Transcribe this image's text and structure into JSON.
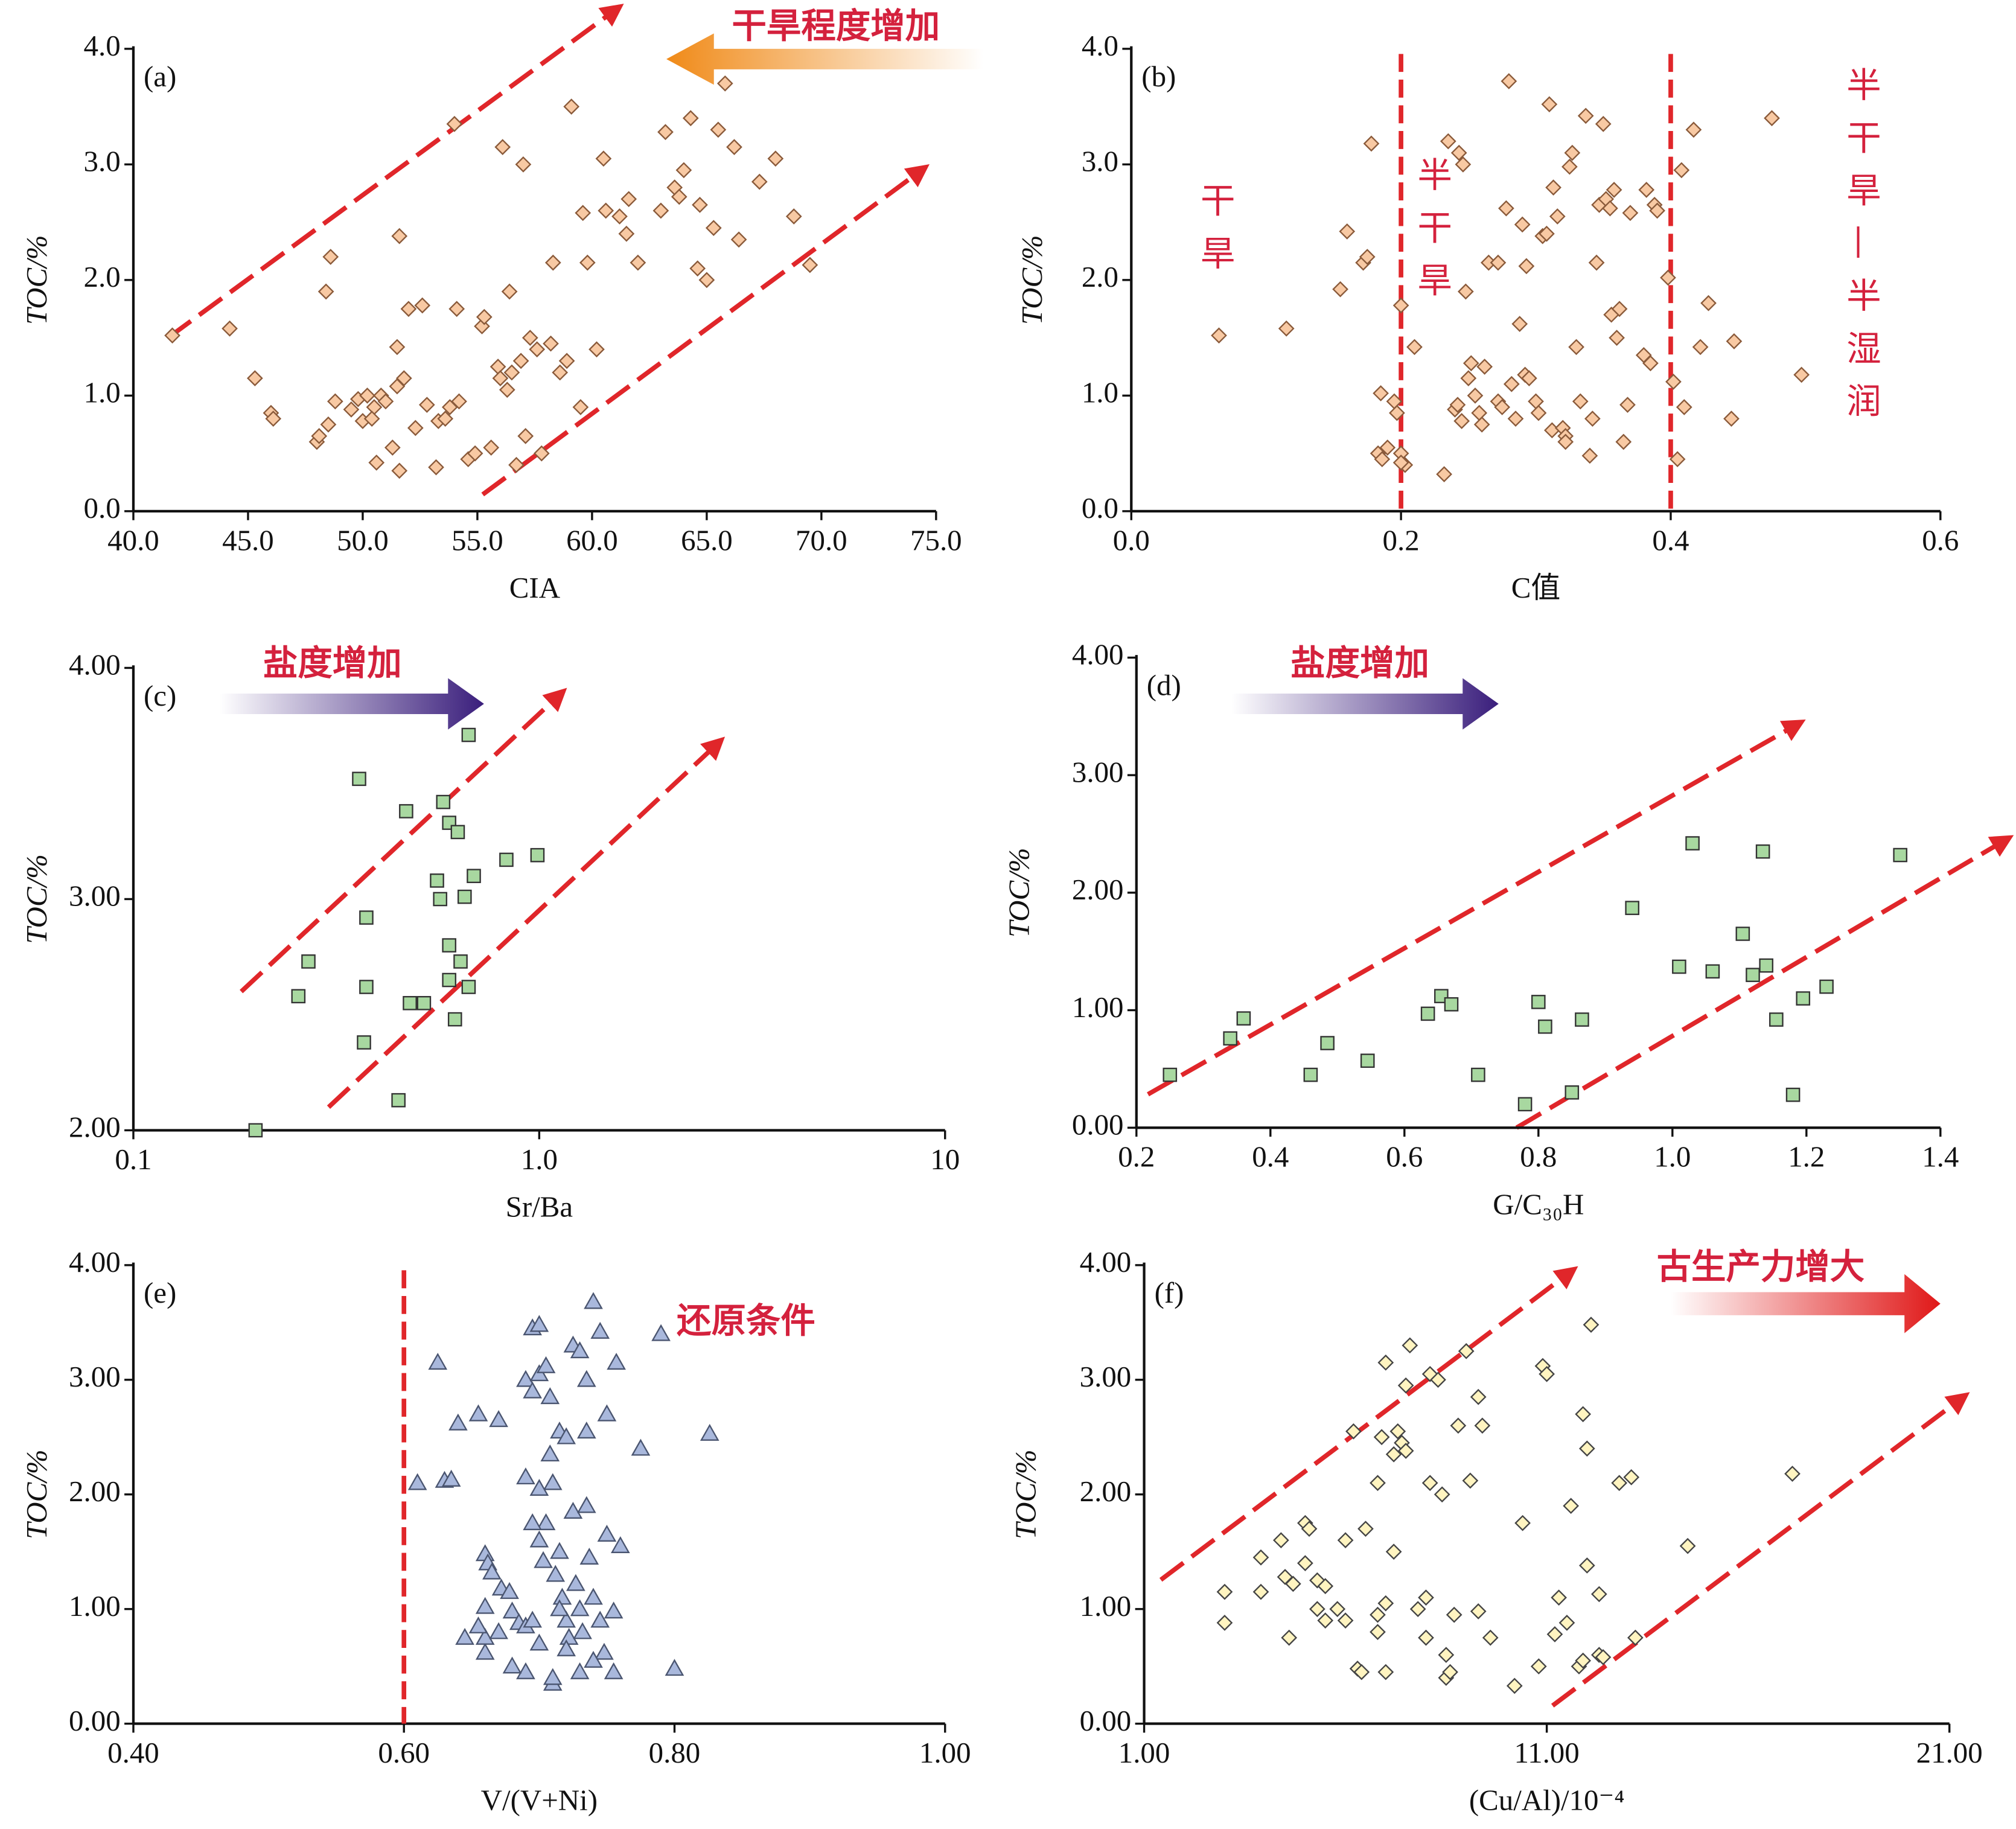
{
  "chart_data": [
    {
      "type": "scatter",
      "label": "(a)",
      "xlabel": "CIA",
      "ylabel": "TOC/%",
      "marker": "diamond",
      "color": "#f8c9a3",
      "edge": "#8a5a3a",
      "xlim": [
        40,
        75
      ],
      "ylim": [
        0,
        4
      ],
      "xticks": [
        {
          "value": 40,
          "label": "40.0"
        },
        {
          "value": 45,
          "label": "45.0"
        },
        {
          "value": 50,
          "label": "50.0"
        },
        {
          "value": 55,
          "label": "55.0"
        },
        {
          "value": 60,
          "label": "60.0"
        },
        {
          "value": 65,
          "label": "65.0"
        },
        {
          "value": 70,
          "label": "70.0"
        },
        {
          "value": 75,
          "label": "75.0"
        }
      ],
      "yticks": [
        {
          "value": 0,
          "label": "0.0"
        },
        {
          "value": 1,
          "label": "1.0"
        },
        {
          "value": 2,
          "label": "2.0"
        },
        {
          "value": 3,
          "label": "3.0"
        },
        {
          "value": 4,
          "label": "4.0"
        }
      ],
      "annotations": [
        "干旱程度增加"
      ],
      "x": [
        41.7,
        44.2,
        45.3,
        46.0,
        46.1,
        48.0,
        48.1,
        48.5,
        48.4,
        48.6,
        48.8,
        49.5,
        49.8,
        50.0,
        50.2,
        50.5,
        50.4,
        50.6,
        50.8,
        51.0,
        51.3,
        51.5,
        51.6,
        51.6,
        51.8,
        51.5,
        52.0,
        52.3,
        52.6,
        52.8,
        53.2,
        53.3,
        53.6,
        53.8,
        54.0,
        54.1,
        54.2,
        54.6,
        54.9,
        55.2,
        55.3,
        55.6,
        55.9,
        56.0,
        56.1,
        56.3,
        56.4,
        56.5,
        56.7,
        56.9,
        57.0,
        57.1,
        57.3,
        57.6,
        57.8,
        58.2,
        58.3,
        58.6,
        58.9,
        59.1,
        59.5,
        59.6,
        59.8,
        60.2,
        60.5,
        60.6,
        61.2,
        61.5,
        61.6,
        62.0,
        63.0,
        63.2,
        63.6,
        63.8,
        64.0,
        64.3,
        64.7,
        64.6,
        65.0,
        65.3,
        65.5,
        65.8,
        66.2,
        66.4,
        67.3,
        68.0,
        68.8,
        69.5
      ],
      "values": [
        1.52,
        1.58,
        1.15,
        0.85,
        0.8,
        0.6,
        0.65,
        0.75,
        1.9,
        2.2,
        0.95,
        0.88,
        0.97,
        0.78,
        1.0,
        0.9,
        0.8,
        0.42,
        1.0,
        0.95,
        0.55,
        1.08,
        0.35,
        2.38,
        1.15,
        1.42,
        1.75,
        0.72,
        1.78,
        0.92,
        0.38,
        0.78,
        0.8,
        0.9,
        3.35,
        1.75,
        0.95,
        0.45,
        0.5,
        1.6,
        1.68,
        0.55,
        1.25,
        1.15,
        3.15,
        1.05,
        1.9,
        1.2,
        0.4,
        1.3,
        3.0,
        0.65,
        1.5,
        1.4,
        0.5,
        1.45,
        2.15,
        1.2,
        1.3,
        3.5,
        0.9,
        2.58,
        2.15,
        1.4,
        3.05,
        2.6,
        2.55,
        2.4,
        2.7,
        2.15,
        2.6,
        3.28,
        2.8,
        2.72,
        2.95,
        3.4,
        2.65,
        2.1,
        2.0,
        2.45,
        3.3,
        3.7,
        3.15,
        2.35,
        2.85,
        3.05,
        2.55,
        2.13
      ]
    },
    {
      "type": "scatter",
      "label": "(b)",
      "xlabel": "C值",
      "ylabel": "TOC/%",
      "marker": "diamond",
      "color": "#f8c9a3",
      "edge": "#8a5a3a",
      "xlim": [
        0,
        0.6
      ],
      "ylim": [
        0,
        4
      ],
      "xticks": [
        {
          "value": 0,
          "label": "0.0"
        },
        0.2,
        0.4,
        0.6
      ],
      "yticks": [
        {
          "value": 0,
          "label": "0.0"
        },
        {
          "value": 1,
          "label": "1.0"
        },
        {
          "value": 2,
          "label": "2.0"
        },
        {
          "value": 3,
          "label": "3.0"
        },
        {
          "value": 4,
          "label": "4.0"
        }
      ],
      "vlines": [
        0.2,
        0.4
      ],
      "annotations": [
        "干旱",
        "半干旱",
        "半干旱—半湿润"
      ],
      "x": [
        0.065,
        0.115,
        0.155,
        0.16,
        0.172,
        0.175,
        0.178,
        0.185,
        0.183,
        0.186,
        0.19,
        0.195,
        0.197,
        0.2,
        0.2,
        0.203,
        0.2,
        0.21,
        0.232,
        0.235,
        0.24,
        0.242,
        0.245,
        0.243,
        0.246,
        0.248,
        0.25,
        0.252,
        0.255,
        0.258,
        0.26,
        0.262,
        0.265,
        0.272,
        0.272,
        0.275,
        0.278,
        0.28,
        0.282,
        0.285,
        0.288,
        0.29,
        0.292,
        0.293,
        0.295,
        0.3,
        0.302,
        0.305,
        0.308,
        0.31,
        0.312,
        0.313,
        0.316,
        0.32,
        0.322,
        0.322,
        0.325,
        0.327,
        0.33,
        0.333,
        0.337,
        0.34,
        0.342,
        0.345,
        0.347,
        0.35,
        0.352,
        0.355,
        0.356,
        0.358,
        0.36,
        0.362,
        0.365,
        0.368,
        0.37,
        0.38,
        0.382,
        0.385,
        0.388,
        0.39,
        0.398,
        0.402,
        0.405,
        0.408,
        0.41,
        0.417,
        0.422,
        0.428,
        0.445,
        0.447,
        0.475,
        0.497
      ],
      "values": [
        1.52,
        1.58,
        1.92,
        2.42,
        2.15,
        2.2,
        3.18,
        1.02,
        0.5,
        0.45,
        0.55,
        0.95,
        0.85,
        1.78,
        0.5,
        0.4,
        0.42,
        1.42,
        0.32,
        3.2,
        0.88,
        0.92,
        0.78,
        3.1,
        3.0,
        1.9,
        1.15,
        1.28,
        1.0,
        0.85,
        0.75,
        1.25,
        2.15,
        2.15,
        0.95,
        0.9,
        2.62,
        3.72,
        1.1,
        0.8,
        1.62,
        2.48,
        1.18,
        2.12,
        1.15,
        0.95,
        0.85,
        2.38,
        2.4,
        3.52,
        0.7,
        2.8,
        2.55,
        0.72,
        0.65,
        0.6,
        2.98,
        3.1,
        1.42,
        0.95,
        3.42,
        0.48,
        0.8,
        2.15,
        2.65,
        3.35,
        2.7,
        2.62,
        1.7,
        2.78,
        1.5,
        1.75,
        0.6,
        0.92,
        2.58,
        1.35,
        2.78,
        1.28,
        2.65,
        2.6,
        2.02,
        1.12,
        0.45,
        2.95,
        0.9,
        3.3,
        1.42,
        1.8,
        0.8,
        1.47,
        3.4,
        1.18
      ]
    },
    {
      "type": "scatter",
      "label": "(c)",
      "xlabel": "Sr/Ba",
      "ylabel": "TOC/%",
      "marker": "square",
      "color": "#a8d8a0",
      "edge": "#333333",
      "xscale": "log",
      "xlim": [
        0.1,
        10
      ],
      "ylim": [
        2,
        4
      ],
      "xticks": [
        0.1,
        {
          "value": 1,
          "label": "1.0"
        },
        10
      ],
      "yticks": [
        {
          "value": 2,
          "label": "2.00"
        },
        {
          "value": 3,
          "label": "3.00"
        },
        {
          "value": 4,
          "label": "4.00"
        }
      ],
      "annotations": [
        "盐度增加"
      ],
      "x": [
        0.2,
        0.255,
        0.27,
        0.36,
        0.37,
        0.375,
        0.375,
        0.45,
        0.47,
        0.48,
        0.52,
        0.56,
        0.57,
        0.58,
        0.6,
        0.6,
        0.6,
        0.62,
        0.63,
        0.64,
        0.655,
        0.67,
        0.67,
        0.69,
        0.83,
        0.99
      ],
      "values": [
        2.0,
        2.58,
        2.73,
        3.52,
        2.38,
        2.92,
        2.62,
        2.13,
        3.38,
        2.55,
        2.55,
        3.08,
        3.0,
        3.42,
        3.33,
        2.8,
        2.65,
        2.48,
        3.29,
        2.73,
        3.01,
        3.71,
        2.62,
        3.1,
        3.17,
        3.19
      ]
    },
    {
      "type": "scatter",
      "label": "(d)",
      "xlabel": "G/C₃₀H",
      "ylabel": "TOC/%",
      "marker": "square",
      "color": "#a8d8a0",
      "edge": "#333333",
      "xlim": [
        0.2,
        1.4
      ],
      "ylim": [
        0,
        4
      ],
      "xticks": [
        0.2,
        0.4,
        0.6,
        0.8,
        {
          "value": 1,
          "label": "1.0"
        },
        1.2,
        1.4
      ],
      "yticks": [
        {
          "value": 0,
          "label": "0.00"
        },
        {
          "value": 1,
          "label": "1.00"
        },
        {
          "value": 2,
          "label": "2.00"
        },
        {
          "value": 3,
          "label": "3.00"
        },
        {
          "value": 4,
          "label": "4.00"
        }
      ],
      "annotations": [
        "盐度增加"
      ],
      "x": [
        0.25,
        0.34,
        0.36,
        0.46,
        0.485,
        0.545,
        0.635,
        0.655,
        0.67,
        0.71,
        0.8,
        0.81,
        0.78,
        0.85,
        0.865,
        0.94,
        1.01,
        1.03,
        1.06,
        1.105,
        1.12,
        1.135,
        1.14,
        1.155,
        1.18,
        1.195,
        1.23,
        1.34
      ],
      "values": [
        0.45,
        0.76,
        0.93,
        0.45,
        0.72,
        0.57,
        0.97,
        1.12,
        1.05,
        0.45,
        1.07,
        0.86,
        0.2,
        0.3,
        0.92,
        1.87,
        1.37,
        2.42,
        1.33,
        1.65,
        1.3,
        2.35,
        1.38,
        0.92,
        0.28,
        1.1,
        1.2,
        2.32
      ]
    },
    {
      "type": "scatter",
      "label": "(e)",
      "xlabel": "V/(V+Ni)",
      "ylabel": "TOC/%",
      "marker": "triangle",
      "color": "#a9b8dc",
      "edge": "#4a5570",
      "xlim": [
        0.4,
        1.0
      ],
      "ylim": [
        0,
        4
      ],
      "xticks": [
        {
          "value": 0.4,
          "label": "0.40"
        },
        {
          "value": 0.6,
          "label": "0.60"
        },
        {
          "value": 0.8,
          "label": "0.80"
        },
        {
          "value": 1,
          "label": "1.00"
        }
      ],
      "yticks": [
        {
          "value": 0,
          "label": "0.00"
        },
        {
          "value": 1,
          "label": "1.00"
        },
        {
          "value": 2,
          "label": "2.00"
        },
        {
          "value": 3,
          "label": "3.00"
        },
        {
          "value": 4,
          "label": "4.00"
        }
      ],
      "vlines": [
        0.6
      ],
      "annotations": [
        "还原条件"
      ],
      "x": [
        0.625,
        0.61,
        0.63,
        0.635,
        0.64,
        0.655,
        0.67,
        0.69,
        0.695,
        0.7,
        0.7,
        0.705,
        0.708,
        0.695,
        0.715,
        0.72,
        0.725,
        0.73,
        0.735,
        0.735,
        0.74,
        0.745,
        0.75,
        0.757,
        0.775,
        0.79,
        0.826,
        0.8,
        0.66,
        0.662,
        0.665,
        0.672,
        0.678,
        0.68,
        0.685,
        0.69,
        0.695,
        0.7,
        0.703,
        0.705,
        0.708,
        0.71,
        0.712,
        0.715,
        0.717,
        0.72,
        0.722,
        0.725,
        0.727,
        0.73,
        0.732,
        0.735,
        0.737,
        0.74,
        0.745,
        0.748,
        0.75,
        0.755,
        0.76,
        0.755,
        0.74,
        0.73,
        0.71,
        0.71,
        0.69,
        0.68,
        0.66,
        0.66,
        0.645,
        0.655,
        0.67,
        0.7,
        0.72,
        0.695,
        0.715,
        0.66,
        0.69,
        0.7
      ],
      "values": [
        3.15,
        2.1,
        2.12,
        2.13,
        2.62,
        2.7,
        2.65,
        3.0,
        3.45,
        3.48,
        3.05,
        3.12,
        2.85,
        2.9,
        2.55,
        2.5,
        3.3,
        3.25,
        3.0,
        2.55,
        3.68,
        3.42,
        2.7,
        3.15,
        2.4,
        3.4,
        2.53,
        0.48,
        1.48,
        1.4,
        1.32,
        1.18,
        1.15,
        0.98,
        0.88,
        0.85,
        0.9,
        1.6,
        1.42,
        1.75,
        2.35,
        2.1,
        1.3,
        1.5,
        1.1,
        0.9,
        0.75,
        1.85,
        1.22,
        1.0,
        0.8,
        1.9,
        1.45,
        1.1,
        0.9,
        0.62,
        1.65,
        0.98,
        1.55,
        0.45,
        0.55,
        0.45,
        0.35,
        0.4,
        0.45,
        0.5,
        0.62,
        0.75,
        0.75,
        0.85,
        0.8,
        0.7,
        0.65,
        1.75,
        1.0,
        1.02,
        2.15,
        2.05
      ]
    },
    {
      "type": "scatter",
      "label": "(f)",
      "xlabel": "(Cu/Al)/10⁻⁴",
      "ylabel": "TOC/%",
      "marker": "diamond",
      "color": "#fff4c0",
      "edge": "#444444",
      "xlim": [
        1,
        21
      ],
      "ylim": [
        0,
        4
      ],
      "xticks": [
        {
          "value": 1,
          "label": "1.00"
        },
        {
          "value": 11,
          "label": "11.00"
        },
        {
          "value": 21,
          "label": "21.00"
        }
      ],
      "yticks": [
        {
          "value": 0,
          "label": "0.00"
        },
        {
          "value": 1,
          "label": "1.00"
        },
        {
          "value": 2,
          "label": "2.00"
        },
        {
          "value": 3,
          "label": "3.00"
        },
        {
          "value": 4,
          "label": "4.00"
        }
      ],
      "annotations": [
        "古生产力增大"
      ],
      "x": [
        3.0,
        3.0,
        3.9,
        3.9,
        4.4,
        4.7,
        4.6,
        4.5,
        5.0,
        5.0,
        5.1,
        5.3,
        5.3,
        5.5,
        5.5,
        5.8,
        6.0,
        6.0,
        6.2,
        6.3,
        6.4,
        6.5,
        6.8,
        6.8,
        6.8,
        6.9,
        7.0,
        7.0,
        7.2,
        7.3,
        7.4,
        7.5,
        7.0,
        7.2,
        7.5,
        7.6,
        7.8,
        8.0,
        8.0,
        8.1,
        8.1,
        8.3,
        8.4,
        8.5,
        8.5,
        8.6,
        8.7,
        8.8,
        9.0,
        9.1,
        9.3,
        9.4,
        9.6,
        9.3,
        10.2,
        10.4,
        10.8,
        10.9,
        11.0,
        11.2,
        11.3,
        11.5,
        11.6,
        11.8,
        11.9,
        11.9,
        12.0,
        12.0,
        12.1,
        12.3,
        12.4,
        12.3,
        12.8,
        13.1,
        13.2,
        14.5,
        17.1
      ],
      "values": [
        1.15,
        0.88,
        1.45,
        1.15,
        1.6,
        1.22,
        0.75,
        1.28,
        1.75,
        1.4,
        1.7,
        1.25,
        1.0,
        1.2,
        0.9,
        1.0,
        0.9,
        1.6,
        2.55,
        0.48,
        0.45,
        1.7,
        0.8,
        0.95,
        2.1,
        2.5,
        3.15,
        1.05,
        2.35,
        2.55,
        2.45,
        2.38,
        0.45,
        1.5,
        2.95,
        3.3,
        1.0,
        0.75,
        1.1,
        2.1,
        3.05,
        3.0,
        2.0,
        0.6,
        0.4,
        0.45,
        0.95,
        2.6,
        3.25,
        2.12,
        2.85,
        2.6,
        0.75,
        0.98,
        0.33,
        1.75,
        0.5,
        3.12,
        3.05,
        0.78,
        1.1,
        0.88,
        1.9,
        0.5,
        0.55,
        2.7,
        2.4,
        1.38,
        3.48,
        0.6,
        0.58,
        1.13,
        2.1,
        2.15,
        0.75,
        1.55,
        2.18
      ]
    }
  ]
}
